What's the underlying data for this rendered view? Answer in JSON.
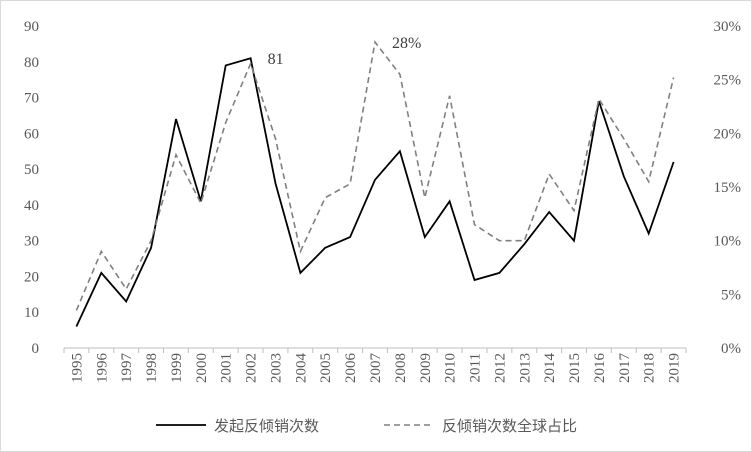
{
  "chart_data": {
    "type": "line",
    "x": [
      "1995",
      "1996",
      "1997",
      "1998",
      "1999",
      "2000",
      "2001",
      "2002",
      "2003",
      "2004",
      "2005",
      "2006",
      "2007",
      "2008",
      "2009",
      "2010",
      "2011",
      "2012",
      "2013",
      "2014",
      "2015",
      "2016",
      "2017",
      "2018",
      "2019"
    ],
    "series": [
      {
        "name": "发起反倾销次数",
        "axis": "left",
        "style": "solid",
        "color": "#000000",
        "values": [
          6,
          21,
          13,
          28,
          64,
          41,
          79,
          81,
          46,
          21,
          28,
          31,
          47,
          55,
          31,
          41,
          19,
          21,
          29,
          38,
          30,
          69,
          48,
          32,
          52
        ]
      },
      {
        "name": "反倾销次数全球占比",
        "axis": "right",
        "style": "dashed",
        "color": "#808080",
        "values": [
          0.035,
          0.09,
          0.055,
          0.1,
          0.18,
          0.135,
          0.21,
          0.265,
          0.195,
          0.09,
          0.14,
          0.153,
          0.285,
          0.255,
          0.14,
          0.235,
          0.115,
          0.1,
          0.1,
          0.162,
          0.128,
          0.232,
          0.195,
          0.155,
          0.252
        ]
      }
    ],
    "y_left": {
      "min": 0,
      "max": 90,
      "ticks": [
        "0",
        "10",
        "20",
        "30",
        "40",
        "50",
        "60",
        "70",
        "80",
        "90"
      ]
    },
    "y_right": {
      "min": 0,
      "max": 0.3,
      "ticks": [
        "0%",
        "5%",
        "10%",
        "15%",
        "20%",
        "25%",
        "30%"
      ]
    },
    "annotations": [
      {
        "text": "81",
        "series": 0,
        "x": "2002"
      },
      {
        "text": "28%",
        "series": 1,
        "x": "2007"
      }
    ],
    "grid": false,
    "legend_position": "bottom"
  }
}
